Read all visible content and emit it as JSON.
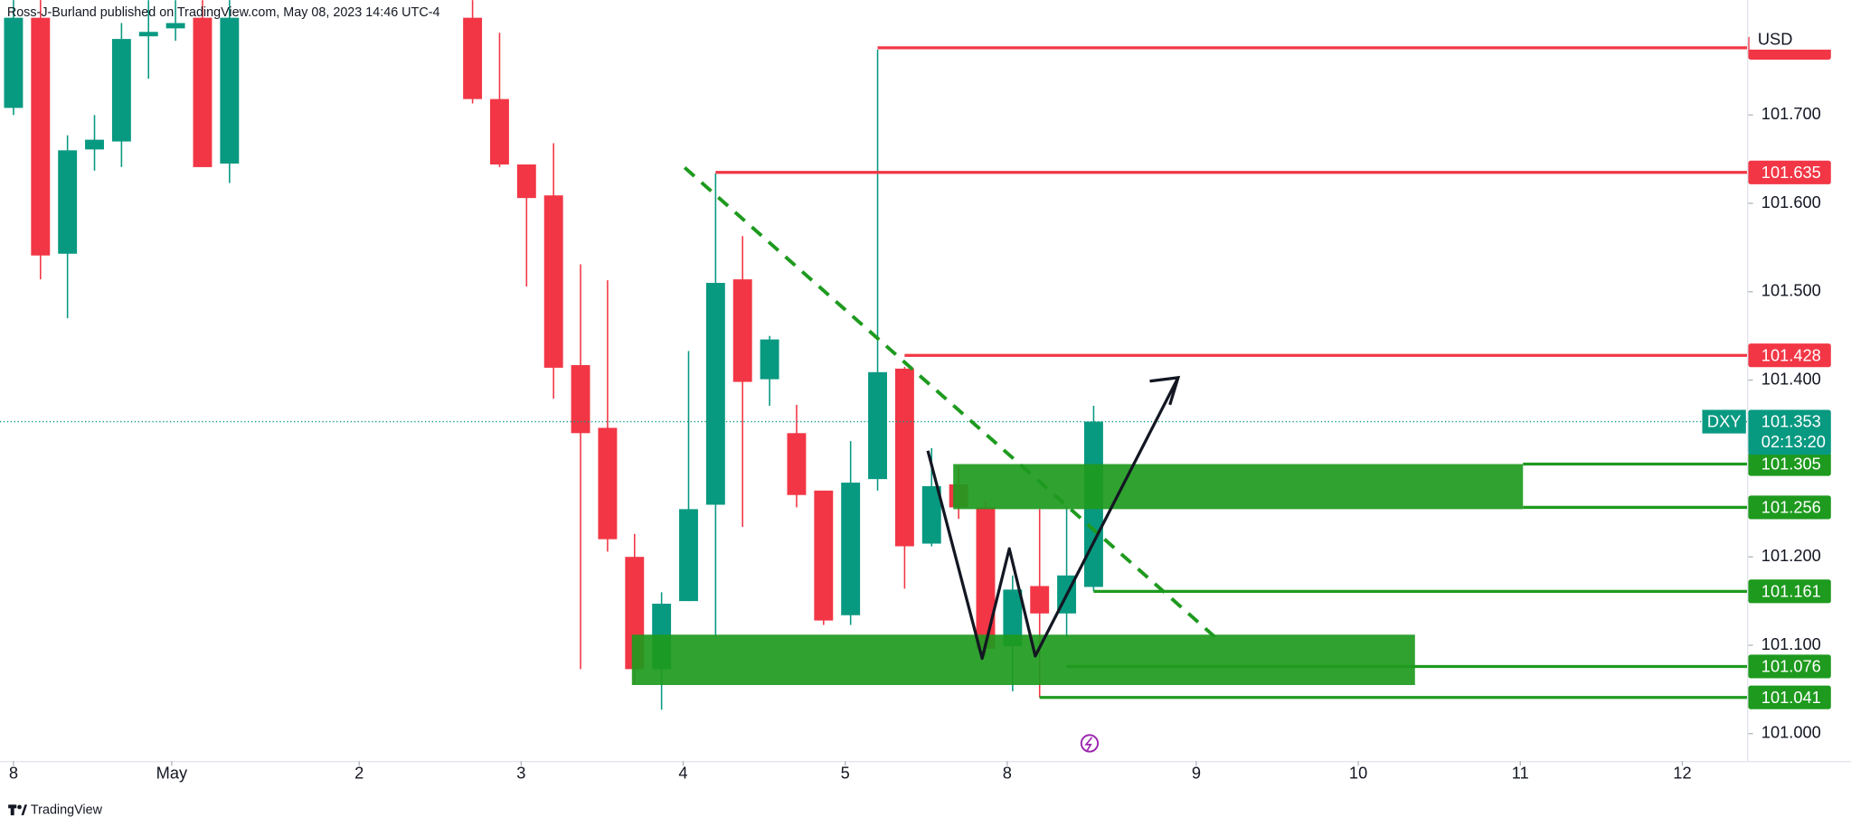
{
  "header": "Ross-J-Burland published on TradingView.com, May 08, 2023 14:46 UTC-4",
  "footer": "TradingView",
  "chart_data": {
    "type": "candlestick",
    "currency": "USD",
    "x": [
      0,
      1,
      2,
      3,
      4,
      5,
      6,
      7,
      8,
      17,
      18,
      19,
      20,
      21,
      22,
      23,
      24,
      25,
      26,
      27,
      28,
      29,
      30,
      31,
      32,
      33,
      34,
      35,
      36,
      37,
      38,
      39,
      40
    ],
    "open": [
      101.708,
      101.81,
      101.543,
      101.661,
      101.67,
      101.789,
      101.798,
      101.81,
      101.645,
      101.81,
      101.718,
      101.644,
      101.609,
      101.417,
      101.346,
      101.2,
      101.073,
      101.15,
      101.259,
      101.514,
      101.401,
      101.34,
      101.275,
      101.134,
      101.288,
      101.413,
      101.215,
      101.282,
      101.256,
      101.099,
      101.167,
      101.136,
      101.166
    ],
    "high": [
      101.85,
      101.85,
      101.677,
      101.7,
      101.804,
      101.83,
      101.83,
      101.85,
      101.85,
      101.85,
      101.793,
      101.644,
      101.668,
      101.531,
      101.513,
      101.226,
      101.16,
      101.433,
      101.634,
      101.563,
      101.45,
      101.372,
      101.275,
      101.331,
      101.774,
      101.415,
      101.323,
      101.303,
      101.263,
      101.179,
      101.254,
      101.256,
      101.371
    ],
    "low": [
      101.7,
      101.514,
      101.47,
      101.637,
      101.641,
      101.741,
      101.784,
      101.641,
      101.623,
      101.713,
      101.641,
      101.506,
      101.379,
      101.073,
      101.206,
      101.056,
      101.027,
      101.15,
      101.109,
      101.234,
      101.371,
      101.256,
      101.123,
      101.123,
      101.275,
      101.164,
      101.212,
      101.243,
      101.088,
      101.048,
      101.041,
      101.109,
      101.161
    ],
    "close": [
      101.81,
      101.541,
      101.66,
      101.672,
      101.786,
      101.794,
      101.804,
      101.641,
      101.81,
      101.718,
      101.644,
      101.606,
      101.414,
      101.34,
      101.22,
      101.073,
      101.147,
      101.254,
      101.51,
      101.398,
      101.446,
      101.27,
      101.128,
      101.284,
      101.409,
      101.212,
      101.28,
      101.256,
      101.096,
      101.163,
      101.136,
      101.179,
      101.353
    ],
    "up_color": "#089981",
    "down_color": "#f23645",
    "xlim": [
      -0.5,
      64.2
    ],
    "xticks": [
      {
        "value": 0,
        "label": "8"
      },
      {
        "value": 5.86,
        "label": "May"
      },
      {
        "value": 12.8,
        "label": "2"
      },
      {
        "value": 18.8,
        "label": "3"
      },
      {
        "value": 24.8,
        "label": "4"
      },
      {
        "value": 30.8,
        "label": "5"
      },
      {
        "value": 36.8,
        "label": "8"
      },
      {
        "value": 43.8,
        "label": "9"
      },
      {
        "value": 49.8,
        "label": "10"
      },
      {
        "value": 55.8,
        "label": "11"
      },
      {
        "value": 61.8,
        "label": "12"
      }
    ],
    "ylim": [
      100.969,
      101.83
    ],
    "yticks": [
      {
        "value": 101.0,
        "label": "101.000"
      },
      {
        "value": 101.1,
        "label": "101.100"
      },
      {
        "value": 101.2,
        "label": "101.200"
      },
      {
        "value": 101.4,
        "label": "101.400"
      },
      {
        "value": 101.5,
        "label": "101.500"
      },
      {
        "value": 101.6,
        "label": "101.600"
      },
      {
        "value": 101.7,
        "label": "101.700"
      }
    ],
    "levels": [
      {
        "value": 101.776,
        "color": "#f23645",
        "from": 32,
        "tag": false
      },
      {
        "value": 101.635,
        "color": "#f23645",
        "from": 26,
        "tag": true
      },
      {
        "value": 101.428,
        "color": "#f23645",
        "from": 33,
        "tag": true
      },
      {
        "value": 101.305,
        "color": "#1e9a1e",
        "from": 55.9,
        "tag": true
      },
      {
        "value": 101.256,
        "color": "#1e9a1e",
        "from": 55.9,
        "tag": true
      },
      {
        "value": 101.161,
        "color": "#1e9a1e",
        "from": 40,
        "tag": true
      },
      {
        "value": 101.076,
        "color": "#1e9a1e",
        "from": 39,
        "tag": true
      },
      {
        "value": 101.041,
        "color": "#1e9a1e",
        "from": 38,
        "tag": true
      }
    ],
    "zones": [
      {
        "x": [
          34.8,
          55.9
        ],
        "y": [
          101.254,
          101.305
        ],
        "color": "#1e9a1e"
      },
      {
        "x": [
          22.9,
          51.9
        ],
        "y": [
          101.055,
          101.112
        ],
        "color": "#1e9a1e"
      }
    ],
    "last": {
      "symbol": "DXY",
      "value": 101.353,
      "countdown": "02:13:20",
      "color": "#089981"
    }
  }
}
